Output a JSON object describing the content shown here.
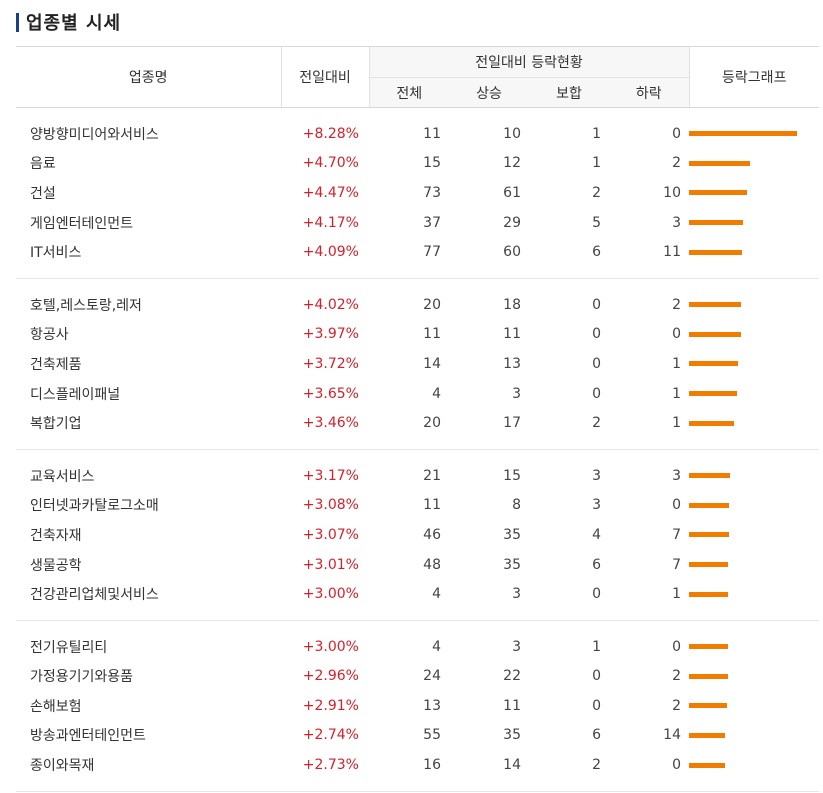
{
  "page": {
    "title": "업종별 시세"
  },
  "header": {
    "name": "업종명",
    "change": "전일대비",
    "group": "전일대비 등락현황",
    "total": "전체",
    "up": "상승",
    "flat": "보합",
    "down": "하락",
    "graph": "등락그래프"
  },
  "colors": {
    "rise": "#d71f2a",
    "bar": "#f07c00",
    "title_bar": "#1b3f8f"
  },
  "groups": [
    {
      "rows": [
        {
          "name": "양방향미디어와서비스",
          "change": "+8.28%",
          "total": "11",
          "up": "10",
          "flat": "1",
          "down": "0",
          "pct": 8.28
        },
        {
          "name": "음료",
          "change": "+4.70%",
          "total": "15",
          "up": "12",
          "flat": "1",
          "down": "2",
          "pct": 4.7
        },
        {
          "name": "건설",
          "change": "+4.47%",
          "total": "73",
          "up": "61",
          "flat": "2",
          "down": "10",
          "pct": 4.47
        },
        {
          "name": "게임엔터테인먼트",
          "change": "+4.17%",
          "total": "37",
          "up": "29",
          "flat": "5",
          "down": "3",
          "pct": 4.17
        },
        {
          "name": "IT서비스",
          "change": "+4.09%",
          "total": "77",
          "up": "60",
          "flat": "6",
          "down": "11",
          "pct": 4.09
        }
      ]
    },
    {
      "rows": [
        {
          "name": "호텔,레스토랑,레저",
          "change": "+4.02%",
          "total": "20",
          "up": "18",
          "flat": "0",
          "down": "2",
          "pct": 4.02
        },
        {
          "name": "항공사",
          "change": "+3.97%",
          "total": "11",
          "up": "11",
          "flat": "0",
          "down": "0",
          "pct": 3.97
        },
        {
          "name": "건축제품",
          "change": "+3.72%",
          "total": "14",
          "up": "13",
          "flat": "0",
          "down": "1",
          "pct": 3.72
        },
        {
          "name": "디스플레이패널",
          "change": "+3.65%",
          "total": "4",
          "up": "3",
          "flat": "0",
          "down": "1",
          "pct": 3.65
        },
        {
          "name": "복합기업",
          "change": "+3.46%",
          "total": "20",
          "up": "17",
          "flat": "2",
          "down": "1",
          "pct": 3.46
        }
      ]
    },
    {
      "rows": [
        {
          "name": "교육서비스",
          "change": "+3.17%",
          "total": "21",
          "up": "15",
          "flat": "3",
          "down": "3",
          "pct": 3.17
        },
        {
          "name": "인터넷과카탈로그소매",
          "change": "+3.08%",
          "total": "11",
          "up": "8",
          "flat": "3",
          "down": "0",
          "pct": 3.08
        },
        {
          "name": "건축자재",
          "change": "+3.07%",
          "total": "46",
          "up": "35",
          "flat": "4",
          "down": "7",
          "pct": 3.07
        },
        {
          "name": "생물공학",
          "change": "+3.01%",
          "total": "48",
          "up": "35",
          "flat": "6",
          "down": "7",
          "pct": 3.01
        },
        {
          "name": "건강관리업체및서비스",
          "change": "+3.00%",
          "total": "4",
          "up": "3",
          "flat": "0",
          "down": "1",
          "pct": 3.0
        }
      ]
    },
    {
      "rows": [
        {
          "name": "전기유틸리티",
          "change": "+3.00%",
          "total": "4",
          "up": "3",
          "flat": "1",
          "down": "0",
          "pct": 3.0
        },
        {
          "name": "가정용기기와용품",
          "change": "+2.96%",
          "total": "24",
          "up": "22",
          "flat": "0",
          "down": "2",
          "pct": 2.96
        },
        {
          "name": "손해보험",
          "change": "+2.91%",
          "total": "13",
          "up": "11",
          "flat": "0",
          "down": "2",
          "pct": 2.91
        },
        {
          "name": "방송과엔터테인먼트",
          "change": "+2.74%",
          "total": "55",
          "up": "35",
          "flat": "6",
          "down": "14",
          "pct": 2.74
        },
        {
          "name": "종이와목재",
          "change": "+2.73%",
          "total": "16",
          "up": "14",
          "flat": "2",
          "down": "0",
          "pct": 2.73
        }
      ]
    }
  ]
}
